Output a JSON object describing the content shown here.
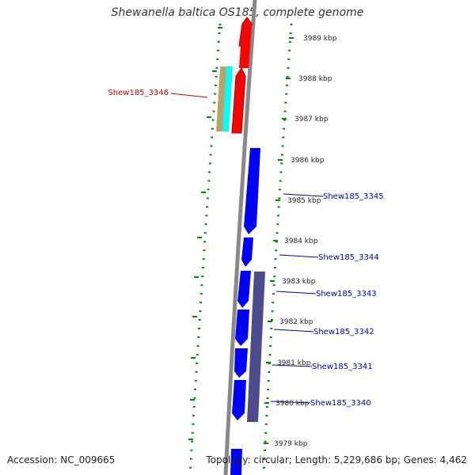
{
  "title": "Shewanella baltica OS185, complete genome",
  "footer": {
    "accession": "Accession: NC_009665",
    "summary": "Topology: circular; Length: 5,229,686 bp; Genes: 4,462"
  },
  "tick_labels": [
    "3989 kbp",
    "3988 kbp",
    "3987 kbp",
    "3986 kbp",
    "3985 kbp",
    "3984 kbp",
    "3983 kbp",
    "3982 kbp",
    "3981 kbp",
    "3980 kbp",
    "3979 kbp"
  ],
  "gene_labels": {
    "left": [
      "Shew185_3346"
    ],
    "right": [
      "Shew185_3345",
      "Shew185_3344",
      "Shew185_3343",
      "Shew185_3342",
      "Shew185_3341",
      "Shew185_3340"
    ]
  },
  "colors": {
    "forward_strand": "#ff0000",
    "reverse_strand": "#0000ff",
    "highlight_red": "#cc0000",
    "label_blue": "#0000aa",
    "tick_green": "#008800",
    "backbone": "#888888",
    "feature_cyan": "#00ffff",
    "feature_olive": "#b8a468",
    "feature_slate": "#4c4c8c"
  }
}
